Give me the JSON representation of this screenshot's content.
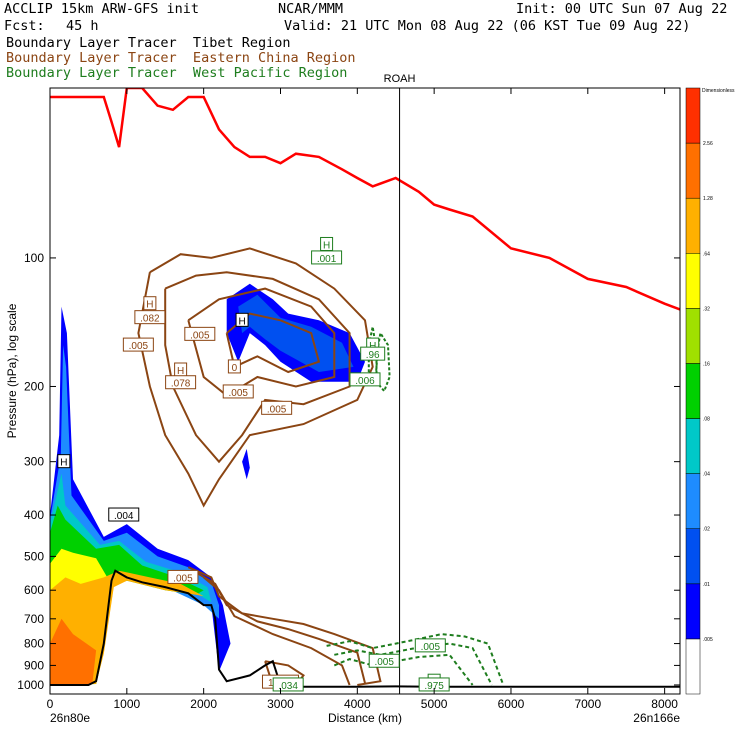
{
  "header": {
    "model": "ACCLIP 15km ARW-GFS init",
    "org": "NCAR/MMM",
    "init": "Init: 00 UTC Sun 07 Aug 22",
    "fcst_label": "Fcst:",
    "fcst_value": "45 h",
    "valid": "Valid: 21 UTC Mon 08 Aug 22 (06 KST Tue 09 Aug 22)",
    "line_tibet": "Boundary Layer Tracer  Tibet Region",
    "line_china": "Boundary Layer Tracer  Eastern China Region",
    "line_pacific": "Boundary Layer Tracer  West Pacific Region"
  },
  "colors": {
    "tibet": "#000000",
    "china": "#8b4513",
    "pacific": "#1e7d1e",
    "tropopause": "#ff0000",
    "terrain": "#000000"
  },
  "chart_data": {
    "type": "cross-section",
    "xlabel": "Distance (km)",
    "ylabel": "Pressure (hPa), log scale",
    "x_start_label": "26n80e",
    "x_end_label": "26n166e",
    "xlim": [
      0,
      8200
    ],
    "ylim": [
      1050,
      40
    ],
    "y_scale": "log",
    "xticks": [
      0,
      1000,
      2000,
      3000,
      4000,
      5000,
      6000,
      7000,
      8000
    ],
    "xtick_labels": [
      "0",
      "1000",
      "2000",
      "3000",
      "4000",
      "5000",
      "6000",
      "7000",
      "8000"
    ],
    "yticks": [
      100,
      200,
      300,
      400,
      500,
      600,
      700,
      800,
      900,
      1000
    ],
    "ytick_labels": [
      "100",
      "200",
      "300",
      "400",
      "500",
      "600",
      "700",
      "800",
      "900",
      "1000"
    ],
    "station": {
      "name": "ROAH",
      "x": 4550
    },
    "colorbar": {
      "title": "Dimensionless",
      "levels": [
        ".005",
        ".01",
        ".02",
        ".04",
        ".08",
        ".16",
        ".32",
        ".64",
        "1.28",
        "2.56"
      ],
      "colors": [
        "#ffffff",
        "#0000ff",
        "#0050f0",
        "#1e8cff",
        "#00c8c8",
        "#00d000",
        "#a0e000",
        "#ffff00",
        "#ffb000",
        "#ff7000",
        "#ff3000"
      ]
    },
    "tropopause": {
      "x": [
        0,
        200,
        500,
        700,
        800,
        900,
        1000,
        1200,
        1400,
        1600,
        1800,
        2000,
        2200,
        2400,
        2600,
        2800,
        3000,
        3200,
        3500,
        3800,
        4000,
        4200,
        4500,
        4800,
        5000,
        5200,
        5500,
        6000,
        6500,
        7000,
        7500,
        8000,
        8200
      ],
      "p": [
        42,
        42,
        42,
        42,
        48,
        55,
        40,
        40,
        44,
        45,
        42,
        42,
        50,
        55,
        58,
        58,
        60,
        57,
        58,
        62,
        65,
        68,
        65,
        70,
        75,
        77,
        80,
        95,
        100,
        112,
        117,
        128,
        132
      ]
    },
    "terrain": {
      "x": [
        0,
        300,
        500,
        600,
        700,
        800,
        850,
        1000,
        1200,
        1500,
        1800,
        2000,
        2100,
        2150,
        2200,
        2300,
        2500,
        2600,
        2800,
        2900,
        3000,
        3200,
        3500,
        4000,
        4500,
        5000,
        6000,
        7000,
        8000,
        8200
      ],
      "p": [
        1000,
        1000,
        1000,
        980,
        800,
        570,
        540,
        560,
        575,
        590,
        610,
        650,
        650,
        700,
        920,
        980,
        960,
        950,
        900,
        880,
        1000,
        1010,
        1010,
        1010,
        1008,
        1010,
        1010,
        1010,
        1010,
        1010
      ]
    },
    "shaded_labels": [
      {
        "x": 960,
        "p": 400,
        "text": ".004"
      },
      {
        "x": 180,
        "p": 300,
        "text": "H"
      },
      {
        "x": 2500,
        "p": 140,
        "text": "H"
      }
    ],
    "china_labels": [
      {
        "x": 1300,
        "p": 128,
        "text": "H"
      },
      {
        "x": 1300,
        "p": 138,
        "text": ".082"
      },
      {
        "x": 1150,
        "p": 160,
        "text": ".005"
      },
      {
        "x": 1700,
        "p": 183,
        "text": "H"
      },
      {
        "x": 1700,
        "p": 196,
        "text": ".078"
      },
      {
        "x": 1950,
        "p": 151,
        "text": ".005"
      },
      {
        "x": 2400,
        "p": 180,
        "text": "0"
      },
      {
        "x": 2450,
        "p": 206,
        "text": ".005"
      },
      {
        "x": 2950,
        "p": 225,
        "text": ".005"
      },
      {
        "x": 1730,
        "p": 560,
        "text": ".005"
      },
      {
        "x": 3000,
        "p": 985,
        "text": "1.045"
      }
    ],
    "pacific_labels": [
      {
        "x": 3600,
        "p": 93,
        "text": "H"
      },
      {
        "x": 3600,
        "p": 100,
        "text": ".001"
      },
      {
        "x": 4200,
        "p": 160,
        "text": "H"
      },
      {
        "x": 4200,
        "p": 168,
        "text": ".96"
      },
      {
        "x": 4100,
        "p": 193,
        "text": ".006"
      },
      {
        "x": 4350,
        "p": 880,
        "text": ".005"
      },
      {
        "x": 4950,
        "p": 810,
        "text": ".005"
      },
      {
        "x": 5000,
        "p": 980,
        "text": "H"
      },
      {
        "x": 5000,
        "p": 1000,
        "text": ".975"
      },
      {
        "x": 3100,
        "p": 1000,
        "text": ".034"
      }
    ]
  }
}
